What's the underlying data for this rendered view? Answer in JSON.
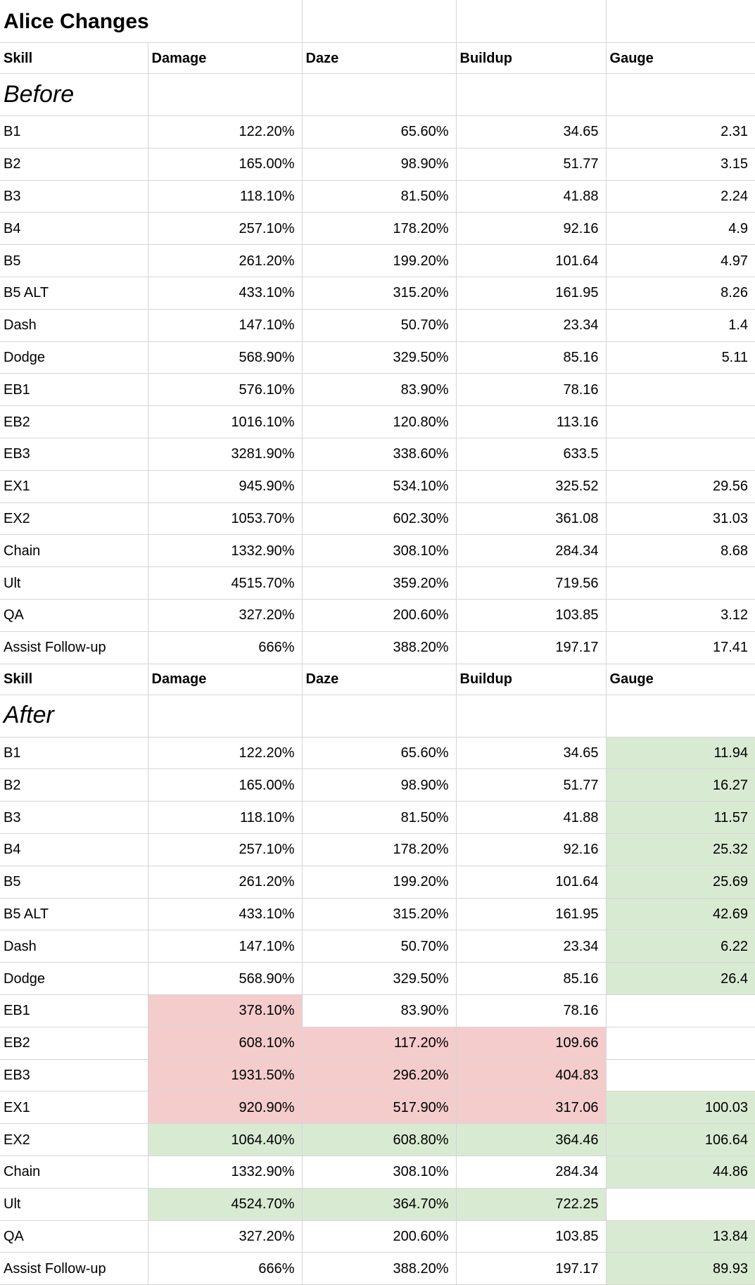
{
  "title": "Alice Changes",
  "columns": [
    "Skill",
    "Damage",
    "Daze",
    "Buildup",
    "Gauge"
  ],
  "colors": {
    "buff_green": "#d9ead3",
    "nerf_red": "#f4cccc",
    "gridline": "#d6d6d6"
  },
  "sections": [
    {
      "label": "Before",
      "rows": [
        {
          "skill": "B1",
          "values": [
            "122.20%",
            "65.60%",
            "34.65",
            "2.31"
          ]
        },
        {
          "skill": "B2",
          "values": [
            "165.00%",
            "98.90%",
            "51.77",
            "3.15"
          ]
        },
        {
          "skill": "B3",
          "values": [
            "118.10%",
            "81.50%",
            "41.88",
            "2.24"
          ]
        },
        {
          "skill": "B4",
          "values": [
            "257.10%",
            "178.20%",
            "92.16",
            "4.9"
          ]
        },
        {
          "skill": "B5",
          "values": [
            "261.20%",
            "199.20%",
            "101.64",
            "4.97"
          ]
        },
        {
          "skill": "B5 ALT",
          "values": [
            "433.10%",
            "315.20%",
            "161.95",
            "8.26"
          ]
        },
        {
          "skill": "Dash",
          "values": [
            "147.10%",
            "50.70%",
            "23.34",
            "1.4"
          ]
        },
        {
          "skill": "Dodge",
          "values": [
            "568.90%",
            "329.50%",
            "85.16",
            "5.11"
          ]
        },
        {
          "skill": "EB1",
          "values": [
            "576.10%",
            "83.90%",
            "78.16",
            ""
          ]
        },
        {
          "skill": "EB2",
          "values": [
            "1016.10%",
            "120.80%",
            "113.16",
            ""
          ]
        },
        {
          "skill": "EB3",
          "values": [
            "3281.90%",
            "338.60%",
            "633.5",
            ""
          ]
        },
        {
          "skill": "EX1",
          "values": [
            "945.90%",
            "534.10%",
            "325.52",
            "29.56"
          ]
        },
        {
          "skill": "EX2",
          "values": [
            "1053.70%",
            "602.30%",
            "361.08",
            "31.03"
          ]
        },
        {
          "skill": "Chain",
          "values": [
            "1332.90%",
            "308.10%",
            "284.34",
            "8.68"
          ]
        },
        {
          "skill": "Ult",
          "values": [
            "4515.70%",
            "359.20%",
            "719.56",
            ""
          ]
        },
        {
          "skill": "QA",
          "values": [
            "327.20%",
            "200.60%",
            "103.85",
            "3.12"
          ]
        },
        {
          "skill": "Assist Follow-up",
          "values": [
            "666%",
            "388.20%",
            "197.17",
            "17.41"
          ]
        }
      ]
    },
    {
      "label": "After",
      "rows": [
        {
          "skill": "B1",
          "values": [
            "122.20%",
            "65.60%",
            "34.65",
            "11.94"
          ],
          "bg": [
            null,
            null,
            null,
            "buff_green"
          ]
        },
        {
          "skill": "B2",
          "values": [
            "165.00%",
            "98.90%",
            "51.77",
            "16.27"
          ],
          "bg": [
            null,
            null,
            null,
            "buff_green"
          ]
        },
        {
          "skill": "B3",
          "values": [
            "118.10%",
            "81.50%",
            "41.88",
            "11.57"
          ],
          "bg": [
            null,
            null,
            null,
            "buff_green"
          ]
        },
        {
          "skill": "B4",
          "values": [
            "257.10%",
            "178.20%",
            "92.16",
            "25.32"
          ],
          "bg": [
            null,
            null,
            null,
            "buff_green"
          ]
        },
        {
          "skill": "B5",
          "values": [
            "261.20%",
            "199.20%",
            "101.64",
            "25.69"
          ],
          "bg": [
            null,
            null,
            null,
            "buff_green"
          ]
        },
        {
          "skill": "B5 ALT",
          "values": [
            "433.10%",
            "315.20%",
            "161.95",
            "42.69"
          ],
          "bg": [
            null,
            null,
            null,
            "buff_green"
          ]
        },
        {
          "skill": "Dash",
          "values": [
            "147.10%",
            "50.70%",
            "23.34",
            "6.22"
          ],
          "bg": [
            null,
            null,
            null,
            "buff_green"
          ]
        },
        {
          "skill": "Dodge",
          "values": [
            "568.90%",
            "329.50%",
            "85.16",
            "26.4"
          ],
          "bg": [
            null,
            null,
            null,
            "buff_green"
          ]
        },
        {
          "skill": "EB1",
          "values": [
            "378.10%",
            "83.90%",
            "78.16",
            ""
          ],
          "bg": [
            "nerf_red",
            null,
            null,
            null
          ]
        },
        {
          "skill": "EB2",
          "values": [
            "608.10%",
            "117.20%",
            "109.66",
            ""
          ],
          "bg": [
            "nerf_red",
            "nerf_red",
            "nerf_red",
            null
          ]
        },
        {
          "skill": "EB3",
          "values": [
            "1931.50%",
            "296.20%",
            "404.83",
            ""
          ],
          "bg": [
            "nerf_red",
            "nerf_red",
            "nerf_red",
            null
          ]
        },
        {
          "skill": "EX1",
          "values": [
            "920.90%",
            "517.90%",
            "317.06",
            "100.03"
          ],
          "bg": [
            "nerf_red",
            "nerf_red",
            "nerf_red",
            "buff_green"
          ]
        },
        {
          "skill": "EX2",
          "values": [
            "1064.40%",
            "608.80%",
            "364.46",
            "106.64"
          ],
          "bg": [
            "buff_green",
            "buff_green",
            "buff_green",
            "buff_green"
          ]
        },
        {
          "skill": "Chain",
          "values": [
            "1332.90%",
            "308.10%",
            "284.34",
            "44.86"
          ],
          "bg": [
            null,
            null,
            null,
            "buff_green"
          ]
        },
        {
          "skill": "Ult",
          "values": [
            "4524.70%",
            "364.70%",
            "722.25",
            ""
          ],
          "bg": [
            "buff_green",
            "buff_green",
            "buff_green",
            null
          ]
        },
        {
          "skill": "QA",
          "values": [
            "327.20%",
            "200.60%",
            "103.85",
            "13.84"
          ],
          "bg": [
            null,
            null,
            null,
            "buff_green"
          ]
        },
        {
          "skill": "Assist Follow-up",
          "values": [
            "666%",
            "388.20%",
            "197.17",
            "89.93"
          ],
          "bg": [
            null,
            null,
            null,
            "buff_green"
          ]
        }
      ]
    }
  ]
}
